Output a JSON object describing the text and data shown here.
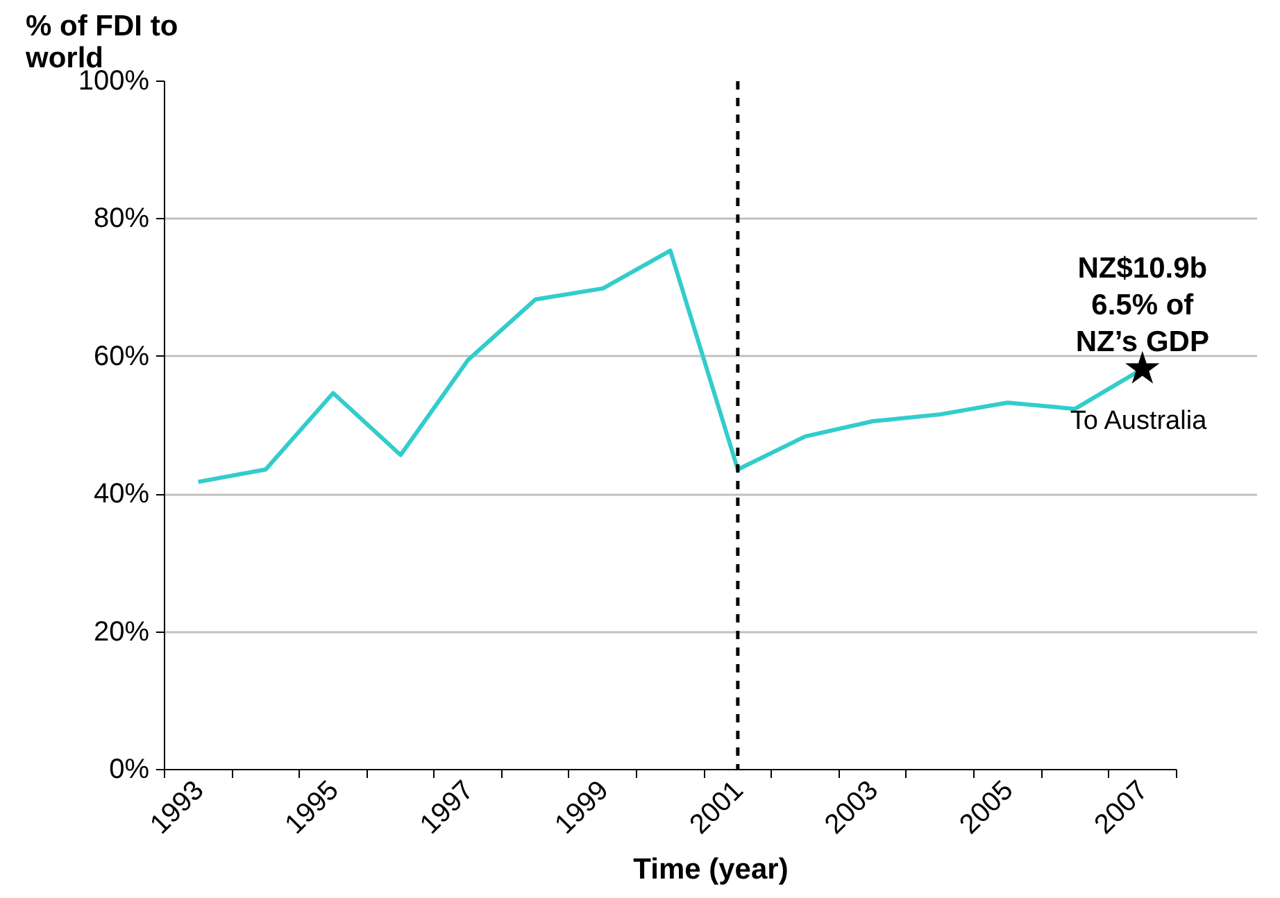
{
  "chart_data": {
    "type": "line",
    "ylabel": "% of FDI to world",
    "xlabel": "Time (year)",
    "categories": [
      "1993",
      null,
      "1995",
      null,
      "1997",
      null,
      "1999",
      null,
      "2001",
      null,
      "2003",
      null,
      "2005",
      null,
      "2007"
    ],
    "series": [
      {
        "name": "To Australia",
        "color": "#33cccc",
        "values": [
          41.8,
          43.6,
          54.7,
          45.7,
          59.5,
          68.3,
          69.9,
          75.4,
          43.6,
          48.4,
          50.6,
          51.6,
          53.3,
          52.4,
          58.2
        ]
      },
      {
        "type": "scatter",
        "marker": "star",
        "color": "#000000",
        "values": [
          null,
          null,
          null,
          null,
          null,
          null,
          null,
          null,
          null,
          null,
          null,
          null,
          null,
          null,
          58.2
        ]
      }
    ],
    "ylim": [
      0,
      100
    ],
    "yticks": [
      {
        "value": 0,
        "label": "0%"
      },
      {
        "value": 20,
        "label": "20%"
      },
      {
        "value": 40,
        "label": "40%"
      },
      {
        "value": 60,
        "label": "60%"
      },
      {
        "value": 80,
        "label": "80%"
      },
      {
        "value": 100,
        "label": "100%"
      }
    ],
    "grid": "y",
    "marker": "none",
    "line_style": "solid",
    "ref_lines": [
      {
        "axis": "x",
        "value": "2001",
        "color": "#000000",
        "line_style": "dashed"
      }
    ],
    "annotations": [
      {
        "text": "NZ$10.9b\n6.5% of\nNZ’s GDP",
        "x": "2007",
        "y": 58.2
      }
    ]
  }
}
